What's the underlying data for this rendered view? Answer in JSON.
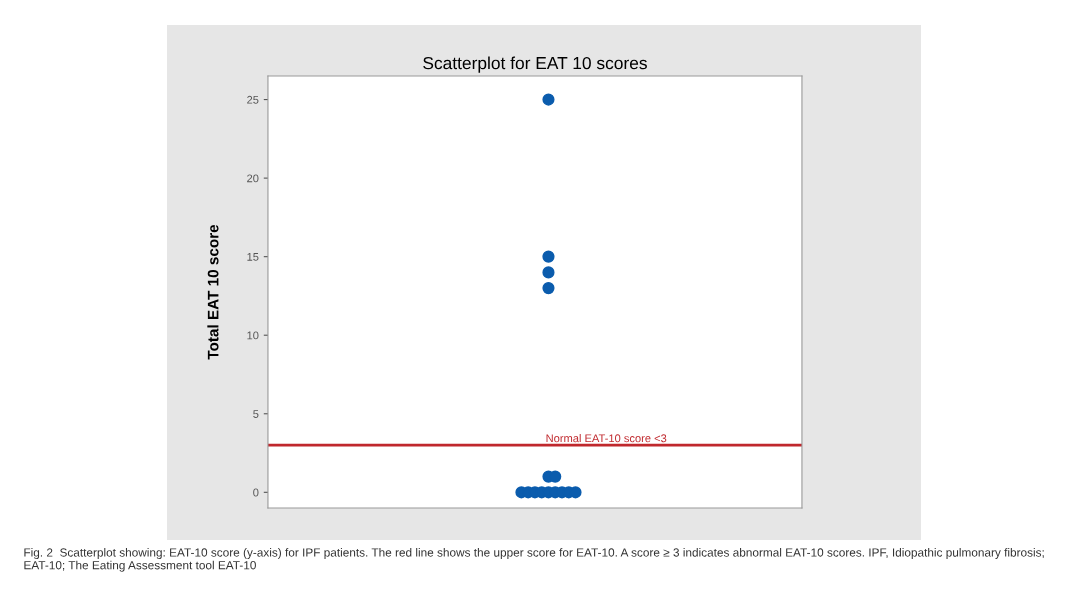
{
  "chart_data": {
    "type": "scatter",
    "title": "Scatterplot for EAT 10 scores",
    "ylabel": "Total EAT 10 score",
    "categories": [
      null,
      null,
      null,
      null,
      null,
      null,
      null,
      null,
      null,
      null,
      null,
      null,
      null,
      null,
      null,
      null,
      null,
      null,
      null,
      null,
      null,
      null,
      null,
      null,
      null,
      null,
      null,
      null,
      null,
      null,
      null,
      null,
      null,
      null,
      null,
      null,
      null,
      null,
      null,
      null,
      null,
      null,
      null,
      null,
      null,
      null,
      null,
      null,
      null,
      null,
      null,
      null,
      null,
      null,
      null,
      null,
      null,
      null,
      null,
      null,
      null,
      null,
      null,
      null,
      null,
      null,
      null,
      null,
      null,
      null,
      null,
      null,
      null,
      null,
      null,
      null,
      null,
      null,
      null
    ],
    "ylim": [
      -1,
      26.5
    ],
    "yticks": [
      0,
      5,
      10,
      15,
      20,
      25
    ],
    "grid": false,
    "marker": "circle",
    "series": [
      {
        "color": "#0b5cad",
        "values": [
          null,
          null,
          null,
          null,
          null,
          null,
          null,
          null,
          null,
          null,
          null,
          null,
          null,
          null,
          null,
          null,
          null,
          null,
          null,
          null,
          null,
          null,
          null,
          null,
          null,
          null,
          null,
          null,
          null,
          null,
          null,
          null,
          null,
          null,
          null,
          null,
          null,
          0,
          0,
          0,
          0,
          0,
          0,
          0,
          0,
          0,
          null,
          null,
          null,
          null,
          null,
          null,
          null,
          null,
          null,
          null,
          null,
          null,
          null,
          null,
          null,
          null,
          null,
          null,
          null,
          null,
          null,
          null,
          null,
          null,
          null,
          null,
          null,
          null,
          null,
          null,
          null,
          null,
          null
        ]
      },
      {
        "color": "#0b5cad",
        "values": [
          null,
          null,
          null,
          null,
          null,
          null,
          null,
          null,
          null,
          null,
          null,
          null,
          null,
          null,
          null,
          null,
          null,
          null,
          null,
          null,
          null,
          null,
          null,
          null,
          null,
          null,
          null,
          null,
          null,
          null,
          null,
          null,
          null,
          null,
          null,
          null,
          null,
          null,
          null,
          null,
          null,
          1,
          1,
          null,
          null,
          null,
          null,
          null,
          null,
          null,
          null,
          null,
          null,
          null,
          null,
          null,
          null,
          null,
          null,
          null,
          null,
          null,
          null,
          null,
          null,
          null,
          null,
          null,
          null,
          null,
          null,
          null,
          null,
          null,
          null,
          null,
          null,
          null,
          null
        ]
      },
      {
        "color": "#0b5cad",
        "values": [
          null,
          null,
          null,
          null,
          null,
          null,
          null,
          null,
          null,
          null,
          null,
          null,
          null,
          null,
          null,
          null,
          null,
          null,
          null,
          null,
          null,
          null,
          null,
          null,
          null,
          null,
          null,
          null,
          null,
          null,
          null,
          null,
          null,
          null,
          null,
          null,
          null,
          null,
          null,
          null,
          null,
          13,
          null,
          null,
          null,
          null,
          null,
          null,
          null,
          null,
          null,
          null,
          null,
          null,
          null,
          null,
          null,
          null,
          null,
          null,
          null,
          null,
          null,
          null,
          null,
          null,
          null,
          null,
          null,
          null,
          null,
          null,
          null,
          null,
          null,
          null,
          null,
          null,
          null
        ]
      },
      {
        "color": "#0b5cad",
        "values": [
          null,
          null,
          null,
          null,
          null,
          null,
          null,
          null,
          null,
          null,
          null,
          null,
          null,
          null,
          null,
          null,
          null,
          null,
          null,
          null,
          null,
          null,
          null,
          null,
          null,
          null,
          null,
          null,
          null,
          null,
          null,
          null,
          null,
          null,
          null,
          null,
          null,
          null,
          null,
          null,
          null,
          14,
          null,
          null,
          null,
          null,
          null,
          null,
          null,
          null,
          null,
          null,
          null,
          null,
          null,
          null,
          null,
          null,
          null,
          null,
          null,
          null,
          null,
          null,
          null,
          null,
          null,
          null,
          null,
          null,
          null,
          null,
          null,
          null,
          null,
          null,
          null,
          null,
          null
        ]
      },
      {
        "color": "#0b5cad",
        "values": [
          null,
          null,
          null,
          null,
          null,
          null,
          null,
          null,
          null,
          null,
          null,
          null,
          null,
          null,
          null,
          null,
          null,
          null,
          null,
          null,
          null,
          null,
          null,
          null,
          null,
          null,
          null,
          null,
          null,
          null,
          null,
          null,
          null,
          null,
          null,
          null,
          null,
          null,
          null,
          null,
          null,
          15,
          null,
          null,
          null,
          null,
          null,
          null,
          null,
          null,
          null,
          null,
          null,
          null,
          null,
          null,
          null,
          null,
          null,
          null,
          null,
          null,
          null,
          null,
          null,
          null,
          null,
          null,
          null,
          null,
          null,
          null,
          null,
          null,
          null,
          null,
          null,
          null,
          null
        ]
      },
      {
        "color": "#0b5cad",
        "values": [
          null,
          null,
          null,
          null,
          null,
          null,
          null,
          null,
          null,
          null,
          null,
          null,
          null,
          null,
          null,
          null,
          null,
          null,
          null,
          null,
          null,
          null,
          null,
          null,
          null,
          null,
          null,
          null,
          null,
          null,
          null,
          null,
          null,
          null,
          null,
          null,
          null,
          null,
          null,
          null,
          null,
          25,
          null,
          null,
          null,
          null,
          null,
          null,
          null,
          null,
          null,
          null,
          null,
          null,
          null,
          null,
          null,
          null,
          null,
          null,
          null,
          null,
          null,
          null,
          null,
          null,
          null,
          null,
          null,
          null,
          null,
          null,
          null,
          null,
          null,
          null,
          null,
          null,
          null
        ]
      }
    ],
    "ref_lines": [
      {
        "axis": "y",
        "value": 3,
        "label": "Normal EAT-10 score <3",
        "color": "#c0282d",
        "line_style": "solid"
      }
    ],
    "annotations": [
      "Fig. 2  Scatterplot showing: EAT-10 score (y-axis) for IPF patients. The red line shows the upper score for EAT-10. A score ≥ 3 indicates abnormal EAT-10 scores. IPF, Idiopathic pulmonary fibrosis; EAT-10; The Eating Assessment tool EAT-10"
    ]
  }
}
